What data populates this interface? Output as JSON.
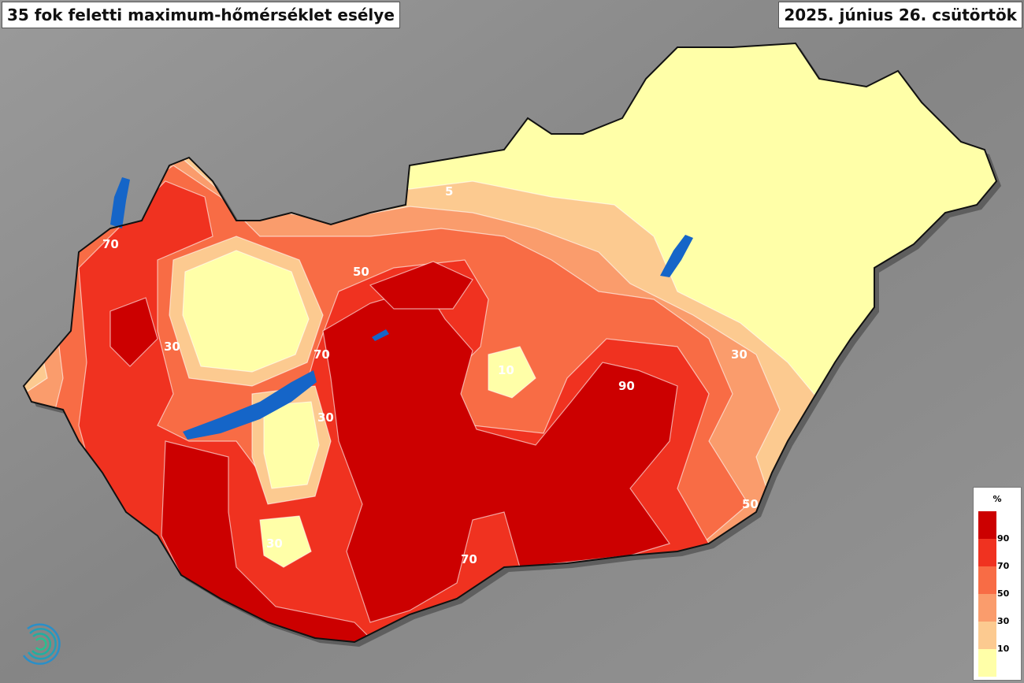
{
  "title": "35 fok feletti maximum-hőmérséklet esélye",
  "date": "2025. június 26. csütörtök",
  "legend": {
    "unit": "%",
    "bands": [
      {
        "range": "90-100",
        "color": "#cc0000"
      },
      {
        "range": "70-90",
        "color": "#f03220"
      },
      {
        "range": "50-70",
        "color": "#f86c45"
      },
      {
        "range": "30-50",
        "color": "#fa9c6c"
      },
      {
        "range": "10-30",
        "color": "#fcca90"
      },
      {
        "range": "0-10",
        "color": "#ffffa8"
      }
    ],
    "ticks": [
      "90",
      "70",
      "50",
      "30",
      "10"
    ]
  },
  "contour_labels": [
    "50",
    "70",
    "30",
    "30",
    "30",
    "10",
    "90",
    "30",
    "50",
    "70",
    "70",
    "5"
  ],
  "colors": {
    "background": "#8c8c8c",
    "lakes": "#1565c8",
    "border": "#111111"
  },
  "logo": "spiral-logo"
}
